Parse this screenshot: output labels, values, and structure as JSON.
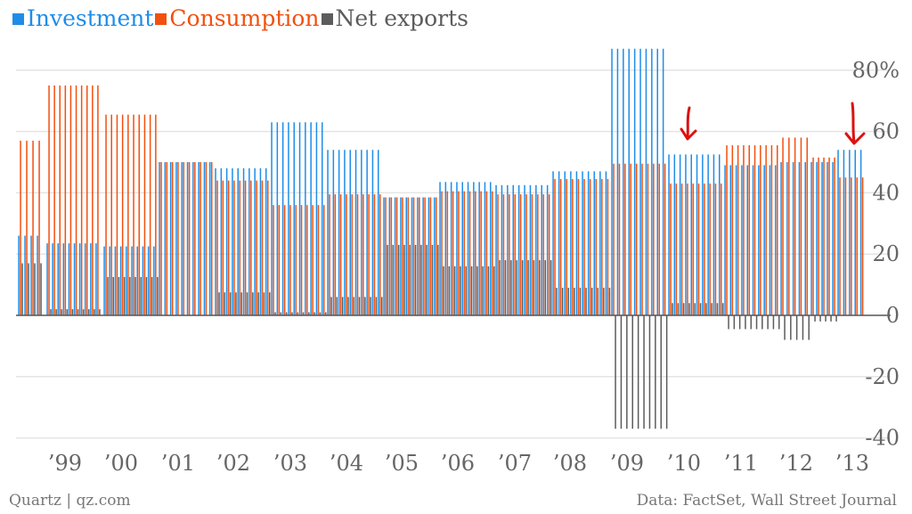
{
  "chart_data": {
    "type": "bar",
    "title": "",
    "xlabel": "",
    "ylabel": "",
    "ylim": [
      -40,
      85
    ],
    "y_ticks": [
      {
        "value": 80,
        "label": "80%"
      },
      {
        "value": 60,
        "label": "60"
      },
      {
        "value": 40,
        "label": "40"
      },
      {
        "value": 20,
        "label": "20"
      },
      {
        "value": 0,
        "label": "0"
      },
      {
        "value": -20,
        "label": "-20"
      },
      {
        "value": -40,
        "label": "-40"
      }
    ],
    "x_tick_labels": [
      "’99",
      "’00",
      "’01",
      "’02",
      "’03",
      "’04",
      "’05",
      "’06",
      "’07",
      "’08",
      "’09",
      "’10",
      "’11",
      "’12",
      "’13"
    ],
    "periods": [
      "1998-99",
      "1999",
      "2000",
      "2001",
      "2002",
      "2003",
      "2004",
      "2005",
      "2006",
      "2007",
      "2008",
      "2009",
      "2010",
      "2011",
      "2012a",
      "2012b",
      "2013"
    ],
    "series": [
      {
        "name": "Investment",
        "color": "#1f8de8",
        "values": [
          26,
          23.5,
          22.5,
          50,
          48,
          63,
          54,
          38.5,
          43.5,
          42.5,
          47,
          87,
          52.5,
          49,
          50,
          50,
          54
        ]
      },
      {
        "name": "Consumption",
        "color": "#f2500f",
        "values": [
          57,
          75,
          65.5,
          50,
          44,
          36,
          39.5,
          38.5,
          40.5,
          39.5,
          44.5,
          49.5,
          43,
          55.5,
          58,
          51.5,
          45
        ]
      },
      {
        "name": "Net exports",
        "color": "#5c5c5c",
        "values": [
          17,
          2,
          12.5,
          0,
          7.5,
          1,
          6,
          23,
          16,
          18,
          9,
          -37,
          4,
          -4.5,
          -8,
          -2,
          0
        ]
      }
    ],
    "annotations": [
      {
        "type": "arrow",
        "color": "#dd1111",
        "period": "2010"
      },
      {
        "type": "arrow",
        "color": "#dd1111",
        "period": "2013"
      }
    ],
    "grid": true,
    "legend_position": "top-left"
  },
  "legend": [
    {
      "label": "Investment",
      "color": "#1f8de8"
    },
    {
      "label": "Consumption",
      "color": "#f2500f"
    },
    {
      "label": "Net exports",
      "color": "#5c5c5c"
    }
  ],
  "footer": {
    "source_left": "Quartz | qz.com",
    "source_right": "Data: FactSet, Wall Street Journal"
  }
}
